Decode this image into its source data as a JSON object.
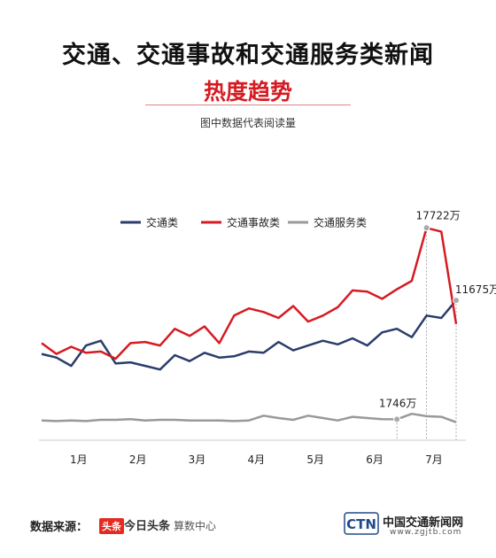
{
  "header": {
    "title": "交通、交通事故和交通服务类新闻",
    "subtitle": "热度趋势",
    "note": "图中数据代表阅读量"
  },
  "chart_data": {
    "type": "line",
    "title": "交通、交通事故和交通服务类新闻",
    "subtitle": "热度趋势",
    "xlabel": "",
    "ylabel": "",
    "x_tick_labels": [
      "1月",
      "2月",
      "3月",
      "4月",
      "5月",
      "6月",
      "7月"
    ],
    "x_tick_positions": [
      2.5,
      6.5,
      10.5,
      14.5,
      18.5,
      22.5,
      26.5
    ],
    "legend_position": "top-left",
    "grid": false,
    "ylim": [
      0,
      19000
    ],
    "x": [
      0,
      1,
      2,
      3,
      4,
      5,
      6,
      7,
      8,
      9,
      10,
      11,
      12,
      13,
      14,
      15,
      16,
      17,
      18,
      19,
      20,
      21,
      22,
      23,
      24,
      25,
      26,
      27,
      28
    ],
    "series": [
      {
        "name": "交通类",
        "color": "#2a3d6b",
        "values": [
          7200,
          6900,
          6200,
          7900,
          8300,
          6400,
          6500,
          6200,
          5900,
          7100,
          6600,
          7300,
          6900,
          7000,
          7400,
          7300,
          8200,
          7500,
          7900,
          8300,
          8000,
          8500,
          7900,
          9000,
          9300,
          8600,
          10400,
          10200,
          11675
        ]
      },
      {
        "name": "交通事故类",
        "color": "#d61b22",
        "values": [
          8100,
          7200,
          7800,
          7300,
          7400,
          6800,
          8100,
          8200,
          7900,
          9300,
          8700,
          9500,
          8100,
          10400,
          11000,
          10700,
          10200,
          11200,
          9900,
          10400,
          11100,
          12500,
          12400,
          11800,
          12600,
          13300,
          17722,
          17400,
          9700
        ]
      },
      {
        "name": "交通服务类",
        "color": "#999999",
        "values": [
          1650,
          1600,
          1650,
          1600,
          1700,
          1700,
          1750,
          1650,
          1700,
          1700,
          1650,
          1650,
          1650,
          1600,
          1650,
          2050,
          1850,
          1700,
          2050,
          1850,
          1650,
          1950,
          1850,
          1750,
          1746,
          2200,
          2000,
          1950,
          1500
        ]
      }
    ],
    "annotations": [
      {
        "label": "17722万",
        "series": 1,
        "index": 26
      },
      {
        "label": "11675万",
        "series": 0,
        "index": 28
      },
      {
        "label": "1746万",
        "series": 2,
        "index": 24
      }
    ]
  },
  "footer": {
    "source_label": "数据来源：",
    "badge": "头条",
    "brand": "今日头条",
    "brand_suffix": "算数中心",
    "logo_letters": "CTN",
    "logo_name": "中国交通新闻网",
    "logo_url": "www.zgjtb.com"
  }
}
